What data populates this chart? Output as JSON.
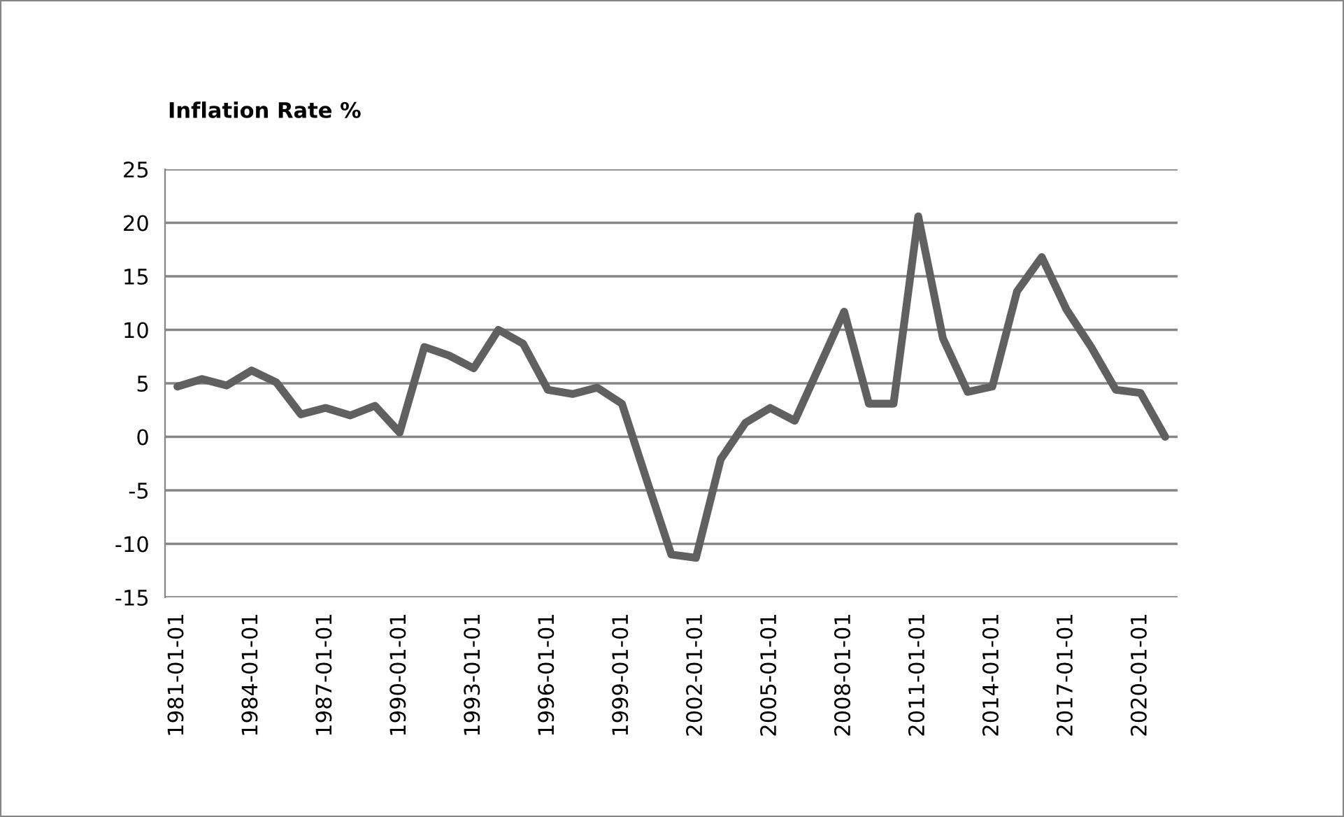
{
  "chart_data": {
    "type": "line",
    "title": "Inflation Rate %",
    "categories": [
      "1981-01-01",
      null,
      null,
      "1984-01-01",
      null,
      null,
      "1987-01-01",
      null,
      null,
      "1990-01-01",
      null,
      null,
      "1993-01-01",
      null,
      null,
      "1996-01-01",
      null,
      null,
      "1999-01-01",
      null,
      null,
      "2002-01-01",
      null,
      null,
      "2005-01-01",
      null,
      null,
      "2008-01-01",
      null,
      null,
      "2011-01-01",
      null,
      null,
      "2014-01-01",
      null,
      null,
      "2017-01-01",
      null,
      null,
      "2020-01-01",
      null
    ],
    "series": [
      {
        "color": "#606060",
        "values": [
          4.7,
          5.4,
          4.8,
          6.2,
          5.1,
          2.1,
          2.7,
          2.0,
          2.9,
          0.4,
          8.4,
          7.6,
          6.4,
          10.0,
          8.7,
          4.4,
          4.0,
          4.6,
          3.1,
          -4.0,
          -11.0,
          -11.3,
          -2.1,
          1.3,
          2.7,
          1.5,
          6.6,
          11.7,
          3.1,
          3.1,
          20.6,
          9.2,
          4.2,
          4.7,
          13.6,
          16.8,
          11.9,
          8.4,
          4.4,
          4.1,
          0.0
        ]
      }
    ],
    "ylim": [
      -15,
      25
    ],
    "yticks": [
      -15,
      -10,
      -5,
      0,
      5,
      10,
      15,
      20,
      25
    ],
    "grid": "y",
    "marker": "none",
    "line_style": "solid"
  }
}
